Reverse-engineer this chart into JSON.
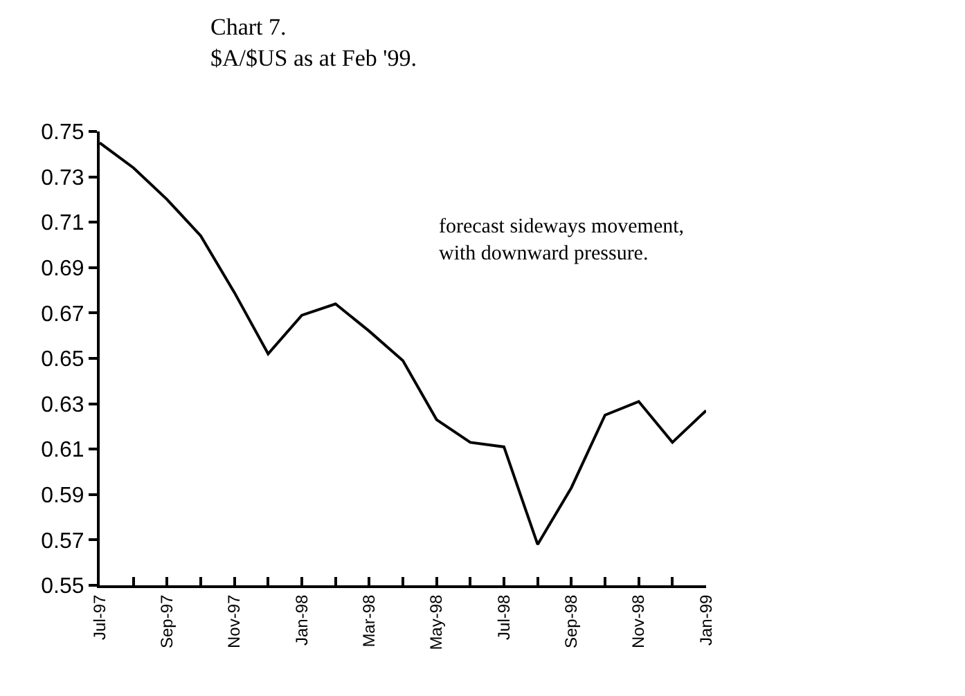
{
  "chart_data": {
    "type": "line",
    "title": "Chart 7.",
    "subtitle": "$A/$US as at Feb '99.",
    "categories": [
      "Jul-97",
      null,
      "Sep-97",
      null,
      "Nov-97",
      null,
      "Jan-98",
      null,
      "Mar-98",
      null,
      "May-98",
      null,
      "Jul-98",
      null,
      "Sep-98",
      null,
      "Nov-98",
      null,
      "Jan-99"
    ],
    "series": [
      {
        "color": "#000000",
        "values": [
          0.745,
          0.734,
          0.72,
          0.704,
          0.679,
          0.652,
          0.669,
          0.674,
          0.662,
          0.649,
          0.623,
          0.613,
          0.611,
          0.568,
          0.593,
          0.625,
          0.631,
          0.613,
          0.627
        ]
      }
    ],
    "ylim": [
      0.55,
      0.75
    ],
    "yticks": [
      0.55,
      0.57,
      0.59,
      0.61,
      0.63,
      0.65,
      0.67,
      0.69,
      0.71,
      0.73,
      0.75
    ],
    "annotations": [
      "forecast sideways movement, with downward pressure."
    ],
    "legend": false,
    "marker": "none",
    "line_style": "solid"
  }
}
